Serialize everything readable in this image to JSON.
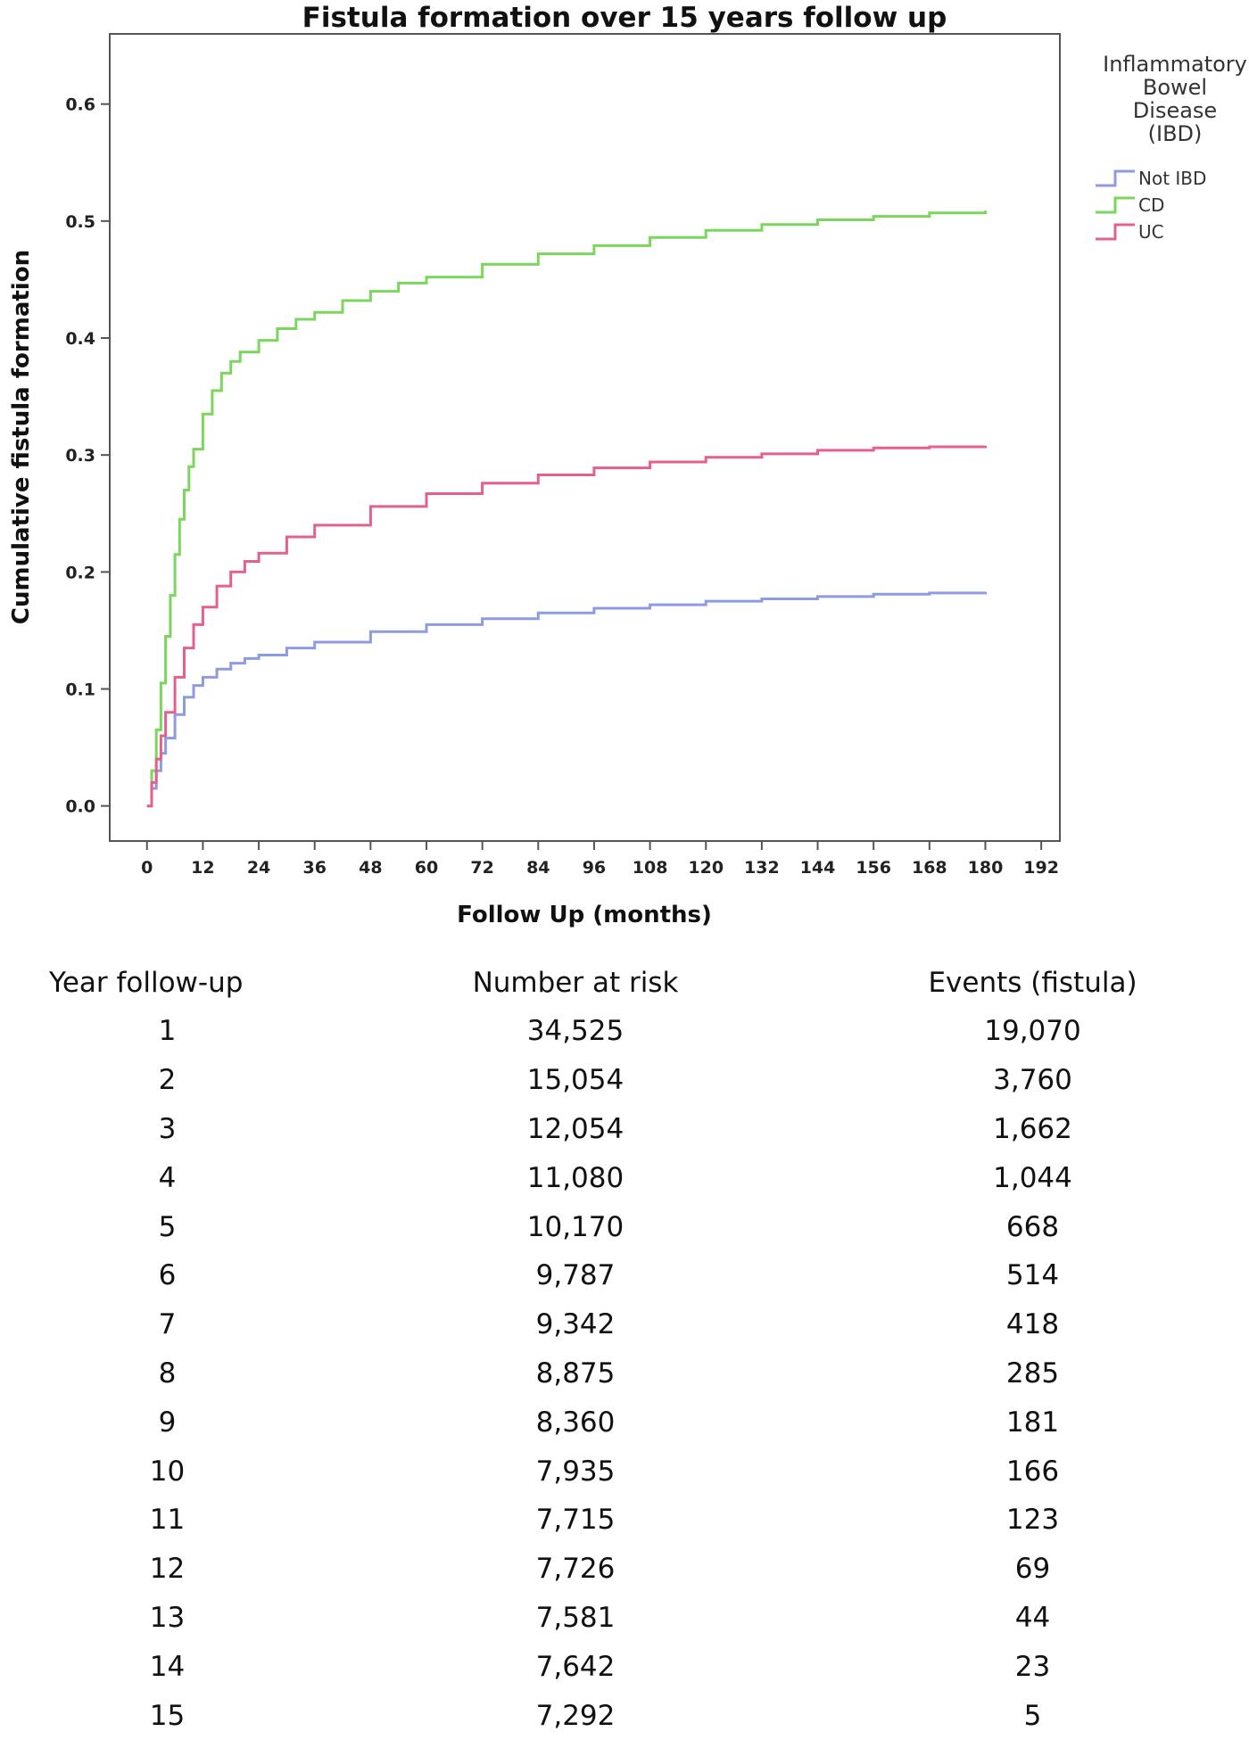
{
  "chart_data": {
    "type": "line",
    "title": "Fistula formation over 15 years follow up",
    "xlabel": "Follow Up (months)",
    "ylabel": "Cumulative fistula formation",
    "xlim": [
      -8,
      196
    ],
    "ylim": [
      -0.03,
      0.66
    ],
    "xticks": [
      0,
      12,
      24,
      36,
      48,
      60,
      72,
      84,
      96,
      108,
      120,
      132,
      144,
      156,
      168,
      180,
      192
    ],
    "yticks": [
      "0.0",
      "0.1",
      "0.2",
      "0.3",
      "0.4",
      "0.5",
      "0.6"
    ],
    "grid": false,
    "legend": {
      "title": [
        "Inflammatory",
        "Bowel",
        "Disease",
        "(IBD)"
      ],
      "placement": "right"
    },
    "series": [
      {
        "name": "Not IBD",
        "color": "#8f9be0",
        "x": [
          0,
          1,
          2,
          3,
          4,
          6,
          8,
          10,
          12,
          15,
          18,
          21,
          24,
          30,
          36,
          48,
          60,
          72,
          84,
          96,
          108,
          120,
          132,
          144,
          156,
          168,
          180
        ],
        "y": [
          0.0,
          0.015,
          0.03,
          0.045,
          0.058,
          0.078,
          0.093,
          0.103,
          0.11,
          0.117,
          0.122,
          0.126,
          0.129,
          0.135,
          0.14,
          0.149,
          0.155,
          0.16,
          0.165,
          0.169,
          0.172,
          0.175,
          0.177,
          0.179,
          0.181,
          0.182,
          0.183
        ]
      },
      {
        "name": "CD",
        "color": "#7bd65d",
        "x": [
          0,
          1,
          2,
          3,
          4,
          5,
          6,
          7,
          8,
          9,
          10,
          12,
          14,
          16,
          18,
          20,
          24,
          28,
          32,
          36,
          42,
          48,
          54,
          60,
          72,
          84,
          96,
          108,
          120,
          132,
          144,
          156,
          168,
          180
        ],
        "y": [
          0.0,
          0.03,
          0.065,
          0.105,
          0.145,
          0.18,
          0.215,
          0.245,
          0.27,
          0.29,
          0.305,
          0.335,
          0.355,
          0.37,
          0.38,
          0.388,
          0.398,
          0.408,
          0.416,
          0.422,
          0.432,
          0.44,
          0.447,
          0.452,
          0.463,
          0.472,
          0.479,
          0.486,
          0.492,
          0.497,
          0.501,
          0.504,
          0.507,
          0.509
        ]
      },
      {
        "name": "UC",
        "color": "#e5608a",
        "x": [
          0,
          1,
          2,
          3,
          4,
          6,
          8,
          10,
          12,
          15,
          18,
          21,
          24,
          30,
          36,
          48,
          60,
          72,
          84,
          96,
          108,
          120,
          132,
          144,
          156,
          168,
          180
        ],
        "y": [
          0.0,
          0.02,
          0.04,
          0.06,
          0.08,
          0.11,
          0.135,
          0.155,
          0.17,
          0.188,
          0.2,
          0.209,
          0.216,
          0.23,
          0.24,
          0.256,
          0.267,
          0.276,
          0.283,
          0.289,
          0.294,
          0.298,
          0.301,
          0.304,
          0.306,
          0.307,
          0.308
        ]
      }
    ]
  },
  "table": {
    "headers": [
      "Year follow-up",
      "Number at risk",
      "Events (fistula)"
    ],
    "rows": [
      [
        "1",
        "34,525",
        "19,070"
      ],
      [
        "2",
        "15,054",
        "3,760"
      ],
      [
        "3",
        "12,054",
        "1,662"
      ],
      [
        "4",
        "11,080",
        "1,044"
      ],
      [
        "5",
        "10,170",
        "668"
      ],
      [
        "6",
        "9,787",
        "514"
      ],
      [
        "7",
        "9,342",
        "418"
      ],
      [
        "8",
        "8,875",
        "285"
      ],
      [
        "9",
        "8,360",
        "181"
      ],
      [
        "10",
        "7,935",
        "166"
      ],
      [
        "11",
        "7,715",
        "123"
      ],
      [
        "12",
        "7,726",
        "69"
      ],
      [
        "13",
        "7,581",
        "44"
      ],
      [
        "14",
        "7,642",
        "23"
      ],
      [
        "15",
        "7,292",
        "5"
      ]
    ]
  }
}
